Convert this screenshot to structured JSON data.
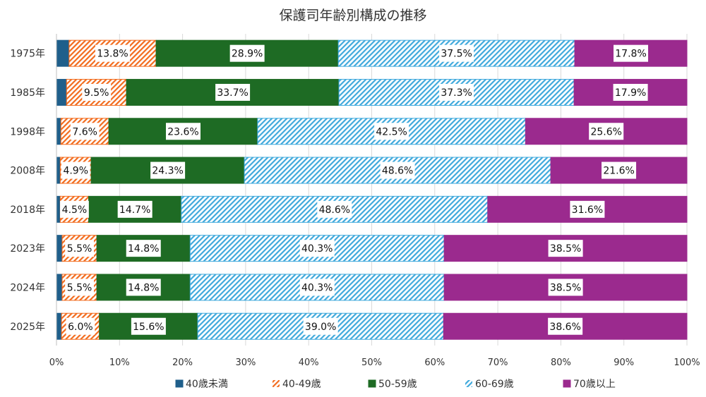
{
  "chart_data": {
    "type": "bar",
    "orientation": "horizontal",
    "stacked": "percent",
    "title": "保護司年齢別構成の推移",
    "categories": [
      "1975年",
      "1985年",
      "1998年",
      "2008年",
      "2018年",
      "2023年",
      "2024年",
      "2025年"
    ],
    "series": [
      {
        "name": "40歳未満",
        "values": [
          2.0,
          1.6,
          0.7,
          0.6,
          0.6,
          0.9,
          0.9,
          0.8
        ],
        "color": "#1f5f8b",
        "pattern": "solid",
        "labels": false
      },
      {
        "name": "40-49歳",
        "values": [
          13.8,
          9.5,
          7.6,
          4.9,
          4.5,
          5.5,
          5.5,
          6.0
        ],
        "color": "#f26b1d",
        "pattern": "hatch",
        "labels": true
      },
      {
        "name": "50-59歳",
        "values": [
          28.9,
          33.7,
          23.6,
          24.3,
          14.7,
          14.8,
          14.8,
          15.6
        ],
        "color": "#1e6b24",
        "pattern": "solid",
        "labels": true
      },
      {
        "name": "60-69歳",
        "values": [
          37.5,
          37.3,
          42.5,
          48.6,
          48.6,
          40.3,
          40.3,
          39.0
        ],
        "color": "#3fa9dc",
        "pattern": "hatch",
        "labels": true
      },
      {
        "name": "70歳以上",
        "values": [
          17.8,
          17.9,
          25.6,
          21.6,
          31.6,
          38.5,
          38.5,
          38.6
        ],
        "color": "#9b2a8e",
        "pattern": "solid",
        "labels": true
      }
    ],
    "xticks": [
      "0%",
      "10%",
      "20%",
      "30%",
      "40%",
      "50%",
      "60%",
      "70%",
      "80%",
      "90%",
      "100%"
    ],
    "xlim": [
      0,
      100
    ],
    "grid": true,
    "legend": "bottom"
  }
}
